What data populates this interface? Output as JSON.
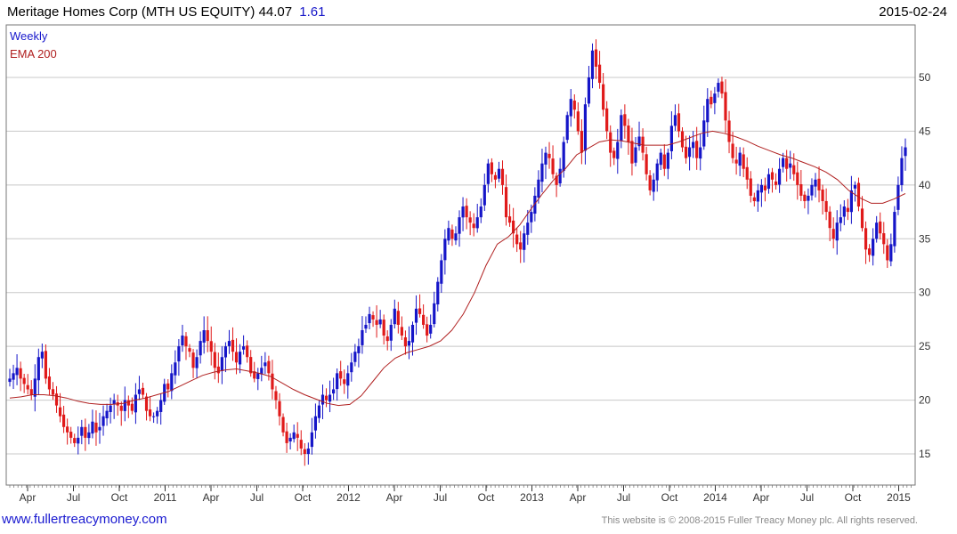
{
  "header": {
    "name": "Meritage Homes Corp (MTH US EQUITY)",
    "price": "44.07",
    "change": "1.61",
    "date": "2015-02-24"
  },
  "footer": {
    "link": "www.fullertreacymoney.com",
    "copyright": "This website is © 2008-2015 Fuller Treacy Money plc. All rights reserved."
  },
  "colors": {
    "up": "#1515c8",
    "down": "#e01a1a",
    "ema": "#b02020",
    "grid": "#c8c8c8"
  },
  "chart_data": {
    "type": "candlestick",
    "title": "Meritage Homes Corp (MTH US EQUITY)",
    "frequency": "Weekly",
    "legend": [
      "Weekly",
      "EMA 200"
    ],
    "ylim": [
      12,
      56
    ],
    "yticks": [
      15,
      20,
      25,
      30,
      35,
      40,
      45,
      50
    ],
    "xticks": [
      "Apr",
      "Jul",
      "Oct",
      "2011",
      "Apr",
      "Jul",
      "Oct",
      "2012",
      "Apr",
      "Jul",
      "Oct",
      "2013",
      "Apr",
      "Jul",
      "Oct",
      "2014",
      "Apr",
      "Jul",
      "Oct",
      "2015"
    ],
    "grid": true,
    "closes": [
      22.0,
      22.5,
      23.0,
      22.0,
      21.5,
      21.0,
      20.5,
      22.0,
      24.0,
      24.5,
      22.0,
      21.0,
      20.5,
      19.5,
      18.5,
      17.5,
      17.0,
      16.5,
      16.0,
      16.5,
      17.5,
      16.5,
      17.0,
      18.0,
      17.0,
      17.5,
      18.5,
      19.0,
      19.5,
      20.0,
      19.5,
      19.0,
      20.0,
      19.5,
      19.0,
      20.5,
      21.0,
      20.5,
      19.0,
      18.5,
      18.5,
      19.0,
      20.0,
      21.5,
      21.0,
      22.5,
      23.5,
      25.0,
      26.0,
      25.0,
      24.5,
      23.0,
      24.0,
      25.5,
      26.5,
      25.5,
      24.5,
      23.0,
      22.5,
      24.0,
      25.0,
      25.5,
      24.5,
      23.5,
      24.5,
      25.0,
      24.0,
      22.5,
      22.0,
      22.5,
      23.0,
      23.5,
      22.5,
      21.0,
      20.0,
      18.5,
      17.0,
      16.0,
      16.5,
      17.0,
      16.5,
      15.5,
      15.0,
      15.5,
      17.0,
      18.5,
      19.5,
      20.5,
      20.0,
      20.5,
      21.0,
      22.5,
      22.0,
      21.5,
      22.5,
      23.5,
      24.5,
      25.0,
      26.5,
      27.0,
      28.0,
      27.5,
      27.0,
      27.5,
      26.0,
      25.5,
      27.0,
      28.5,
      27.0,
      26.0,
      25.0,
      25.5,
      27.0,
      28.5,
      28.0,
      27.0,
      26.0,
      27.0,
      29.0,
      31.0,
      33.0,
      35.0,
      36.0,
      35.0,
      35.5,
      37.0,
      38.0,
      37.0,
      36.5,
      36.0,
      37.0,
      38.0,
      40.0,
      42.0,
      41.0,
      40.5,
      41.5,
      40.0,
      37.0,
      36.5,
      35.5,
      34.5,
      34.0,
      35.5,
      36.5,
      37.5,
      39.0,
      40.5,
      42.0,
      43.0,
      42.5,
      41.0,
      40.0,
      41.5,
      44.0,
      46.5,
      48.0,
      47.0,
      45.0,
      43.0,
      47.5,
      50.0,
      52.5,
      51.0,
      49.5,
      47.0,
      45.0,
      43.0,
      42.5,
      44.0,
      46.5,
      45.5,
      44.0,
      42.0,
      43.5,
      44.5,
      43.0,
      41.0,
      39.5,
      40.5,
      42.0,
      43.0,
      41.5,
      43.0,
      45.5,
      46.5,
      45.0,
      43.5,
      42.5,
      43.5,
      44.0,
      42.5,
      43.5,
      46.0,
      48.0,
      47.5,
      48.5,
      49.5,
      48.5,
      46.0,
      44.0,
      42.5,
      42.0,
      43.0,
      41.5,
      40.5,
      39.0,
      38.5,
      39.5,
      40.0,
      39.5,
      41.0,
      40.5,
      40.0,
      41.5,
      42.5,
      41.5,
      42.0,
      41.0,
      40.0,
      39.0,
      38.5,
      39.0,
      40.0,
      40.5,
      39.5,
      38.5,
      37.5,
      36.0,
      35.0,
      36.5,
      37.0,
      38.0,
      37.5,
      39.5,
      40.0,
      38.0,
      36.0,
      34.0,
      33.5,
      35.0,
      36.5,
      35.5,
      34.5,
      33.0,
      34.5,
      37.5,
      40.0,
      42.5,
      43.5
    ],
    "ema_200": [
      20.2,
      20.3,
      20.5,
      20.5,
      20.4,
      20.2,
      19.9,
      19.7,
      19.6,
      19.6,
      19.7,
      20.0,
      20.2,
      20.5,
      20.8,
      21.3,
      21.8,
      22.3,
      22.6,
      22.8,
      22.9,
      22.7,
      22.5,
      22.2,
      21.6,
      21.0,
      20.5,
      20.1,
      19.7,
      19.5,
      19.6,
      20.4,
      21.7,
      23.0,
      23.9,
      24.4,
      24.7,
      25.0,
      25.5,
      26.5,
      28.0,
      30.0,
      32.5,
      34.5,
      35.2,
      36.3,
      37.8,
      39.2,
      40.5,
      41.5,
      42.8,
      43.4,
      44.0,
      44.2,
      44.1,
      43.9,
      43.7,
      43.7,
      43.7,
      44.0,
      44.4,
      44.8,
      45.0,
      44.8,
      44.5,
      44.1,
      43.6,
      43.2,
      42.8,
      42.5,
      42.1,
      41.7,
      41.2,
      40.5,
      39.5,
      38.8,
      38.3,
      38.3,
      38.7,
      39.2
    ]
  }
}
